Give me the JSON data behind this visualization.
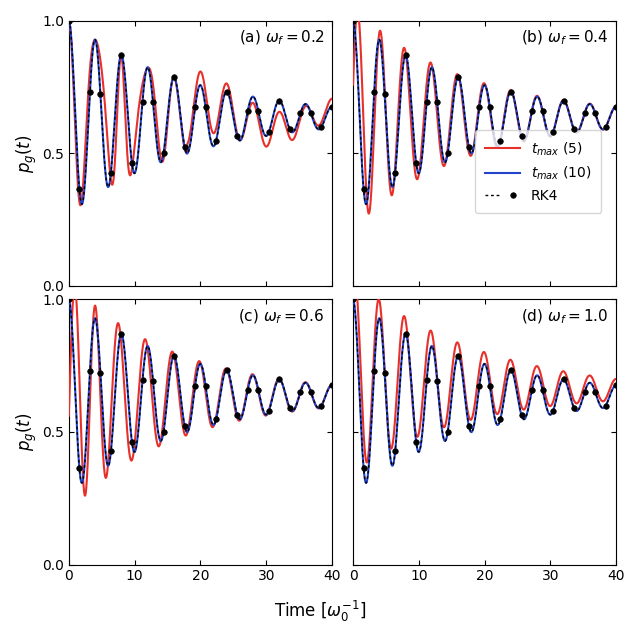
{
  "panels": [
    {
      "label": "(a)",
      "omega_f": 0.2,
      "omega_label": "0.2"
    },
    {
      "label": "(b)",
      "omega_f": 0.4,
      "omega_label": "0.4"
    },
    {
      "label": "(c)",
      "omega_f": 0.6,
      "omega_label": "0.6"
    },
    {
      "label": "(d)",
      "omega_f": 1.0,
      "omega_label": "1.0"
    }
  ],
  "ylabel": "$p_g(t)$",
  "xlabel": "Time $[\\omega_0^{-1}]$",
  "xlim": [
    0,
    40
  ],
  "ylim": [
    0.0,
    1.0
  ],
  "yticks": [
    0.0,
    0.5,
    1.0
  ],
  "xticks": [
    0,
    10,
    20,
    30,
    40
  ],
  "color_red": "#e8302a",
  "color_blue": "#2244cc",
  "color_rk4": "black",
  "legend_labels": [
    "$t_{max}$ (5)",
    "$t_{max}$ (10)",
    "RK4"
  ],
  "figsize": [
    6.4,
    6.3
  ],
  "dpi": 100,
  "gamma": 0.055,
  "p_ss": 0.635,
  "omega_R": 1.57,
  "amp0": 0.365,
  "n_dots": 26,
  "t_max": 40
}
